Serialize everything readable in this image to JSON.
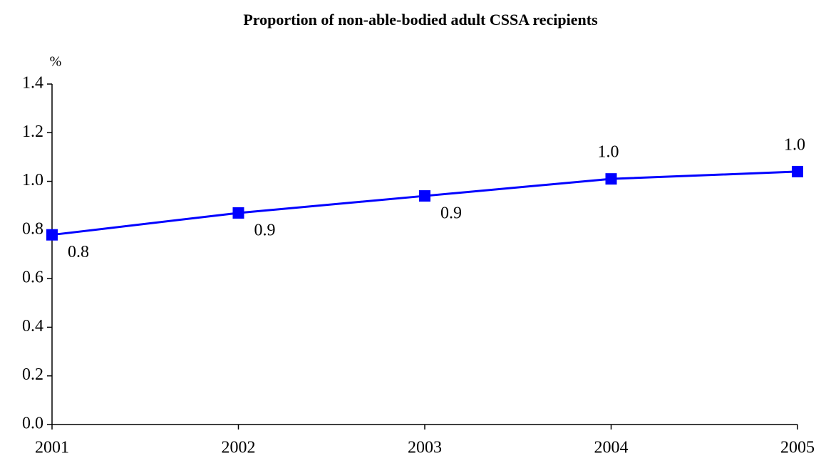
{
  "chart_data": {
    "type": "line",
    "title": "Proportion of non-able-bodied adult CSSA recipients",
    "y_label": "%",
    "x": [
      2001,
      2002,
      2003,
      2004,
      2005
    ],
    "xlim": [
      2001,
      2005
    ],
    "xticks": [
      2001,
      2002,
      2003,
      2004,
      2005
    ],
    "ylim": [
      0,
      1.4
    ],
    "yticks": [
      {
        "value": 0,
        "label": "0.0"
      },
      0.2,
      0.4,
      0.6,
      0.8,
      {
        "value": 1,
        "label": "1.0"
      },
      1.2,
      1.4
    ],
    "series": [
      {
        "name": "Proportion",
        "color": "#0000ff",
        "values": [
          0.78,
          0.87,
          0.94,
          1.01,
          1.04
        ],
        "value_labels": [
          "0.8",
          "0.9",
          "0.9",
          "1.0",
          "1.0"
        ]
      }
    ]
  }
}
